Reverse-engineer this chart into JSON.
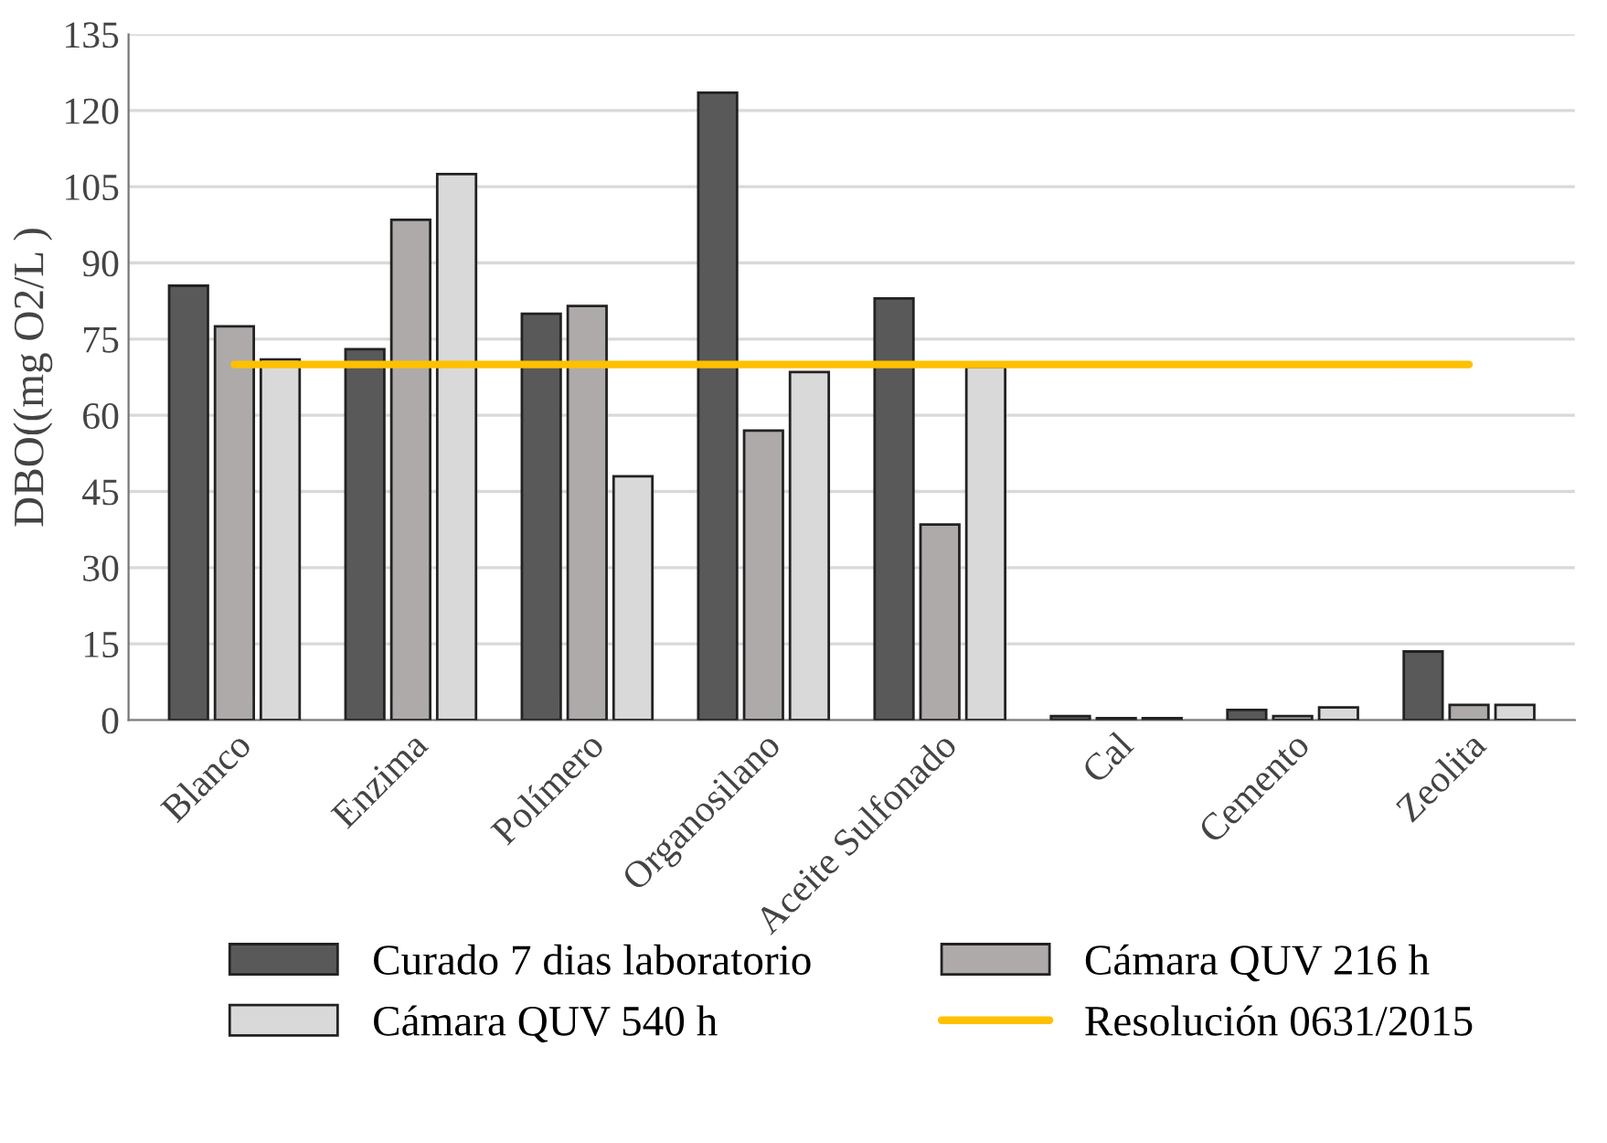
{
  "chart_data": {
    "type": "bar",
    "ylabel": "DBO((mg O2/L )",
    "categories": [
      "Blanco",
      "Enzima",
      "Polímero",
      "Organosilano",
      "Aceite Sulfonado",
      "Cal",
      "Cemento",
      "Zeolita"
    ],
    "series": [
      {
        "name": "Curado 7 dias laboratorio",
        "color": "#595959",
        "values": [
          85.5,
          73,
          80,
          123.5,
          83,
          0.8,
          2,
          13.5
        ]
      },
      {
        "name": "Cámara QUV 216 h",
        "color": "#aeaaaa",
        "values": [
          77.5,
          98.5,
          81.5,
          57,
          38.5,
          0.4,
          0.8,
          3
        ]
      },
      {
        "name": "Cámara QUV 540 h",
        "color": "#d9d9d9",
        "values": [
          71,
          107.5,
          48,
          68.5,
          69.5,
          0.4,
          2.5,
          3
        ]
      },
      {
        "name": "Resolución 0631/2015",
        "type": "line",
        "color": "#ffc000",
        "values": [
          70,
          70,
          70,
          70,
          70,
          70,
          70,
          70
        ]
      }
    ],
    "ylim": [
      0,
      135
    ],
    "yticks": [
      0,
      15,
      30,
      45,
      60,
      75,
      90,
      105,
      120,
      135
    ],
    "grid": "y",
    "legend": "bottom"
  }
}
